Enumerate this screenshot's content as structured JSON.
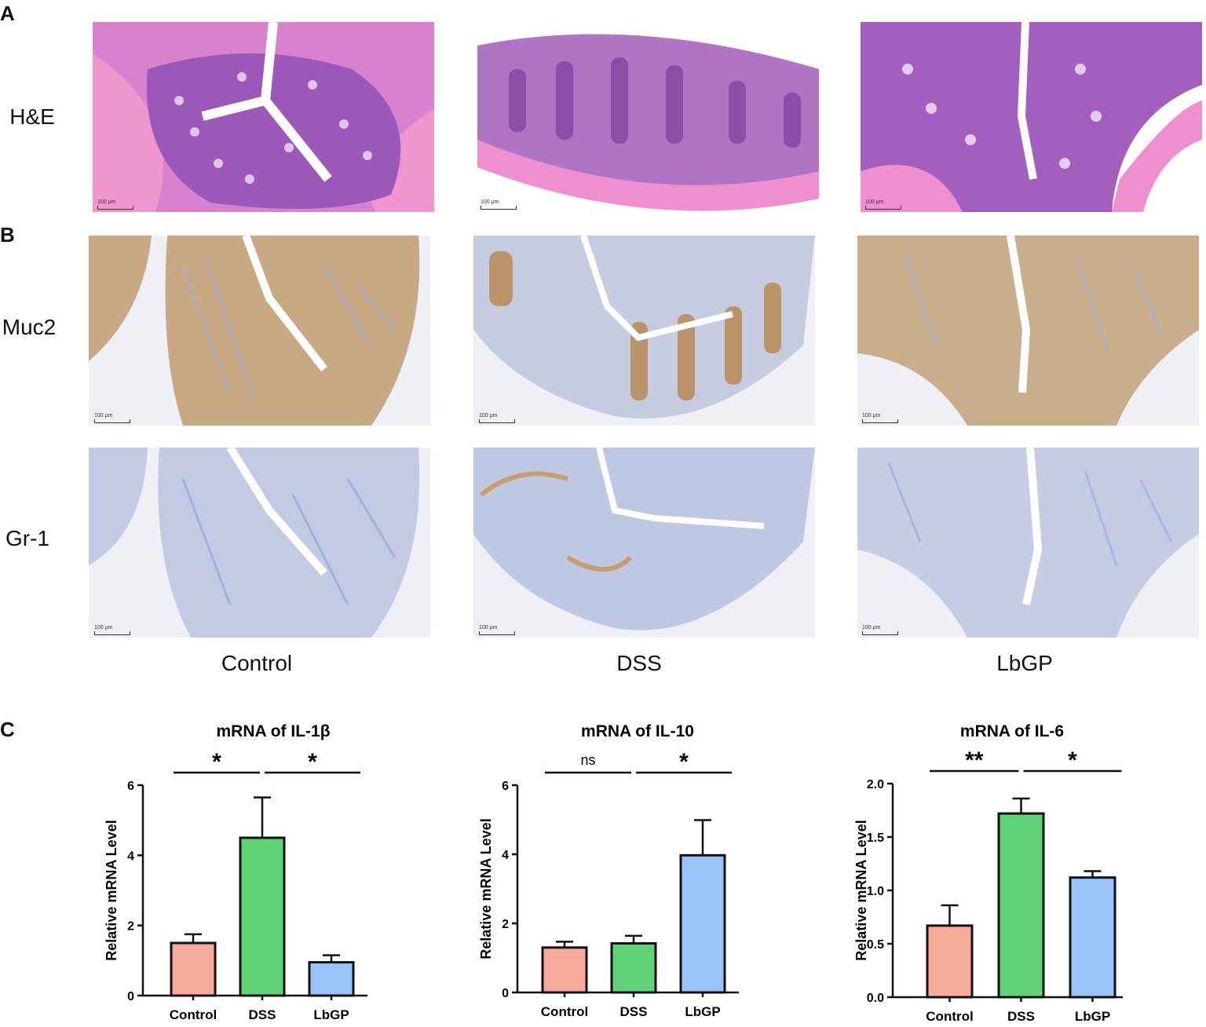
{
  "panels": {
    "a": "A",
    "b": "B",
    "c": "C"
  },
  "row_labels": [
    "H&E",
    "Muc2",
    "Gr-1"
  ],
  "column_labels": [
    "Control",
    "DSS",
    "LbGP"
  ],
  "scale_bar_text": "100 μm",
  "colors": {
    "he_bg": "#c970c9",
    "he_muscle": "#f08ccd",
    "he_crypt": "#7a3fa8",
    "ihc_bg": "#e6eaf3",
    "ihc_tissue": "#b9c3e0",
    "muc2_stain": "#b88a55",
    "control": "#f8aa9d",
    "dss": "#62d276",
    "lbgp": "#99c4fb"
  },
  "chart_data": [
    {
      "type": "bar",
      "title": "mRNA of IL-1β",
      "ylabel": "Relative mRNA Level",
      "categories": [
        "Control",
        "DSS",
        "LbGP"
      ],
      "values": [
        1.5,
        4.5,
        0.95
      ],
      "errors": [
        0.25,
        1.15,
        0.2
      ],
      "ylim": [
        0,
        6
      ],
      "yticks": [
        "0",
        "2",
        "4",
        "6"
      ],
      "ytick_values": [
        0,
        2,
        4,
        6
      ],
      "significance": [
        {
          "from": 0,
          "to": 1,
          "label": "*"
        },
        {
          "from": 1,
          "to": 2,
          "label": "*"
        }
      ]
    },
    {
      "type": "bar",
      "title": "mRNA of IL-10",
      "ylabel": "Relative mRNA Level",
      "categories": [
        "Control",
        "DSS",
        "LbGP"
      ],
      "values": [
        1.3,
        1.42,
        3.97
      ],
      "errors": [
        0.17,
        0.22,
        1.02
      ],
      "ylim": [
        0,
        6
      ],
      "yticks": [
        "0",
        "2",
        "4",
        "6"
      ],
      "ytick_values": [
        0,
        2,
        4,
        6
      ],
      "significance": [
        {
          "from": 0,
          "to": 1,
          "label": "ns"
        },
        {
          "from": 1,
          "to": 2,
          "label": "*"
        }
      ]
    },
    {
      "type": "bar",
      "title": "mRNA of IL-6",
      "ylabel": "Relative mRNA Level",
      "categories": [
        "Control",
        "DSS",
        "LbGP"
      ],
      "values": [
        0.67,
        1.72,
        1.12
      ],
      "errors": [
        0.19,
        0.14,
        0.06
      ],
      "ylim": [
        0,
        2
      ],
      "yticks": [
        "0.0",
        "0.5",
        "1.0",
        "1.5",
        "2.0"
      ],
      "ytick_values": [
        0,
        0.5,
        1,
        1.5,
        2
      ],
      "significance": [
        {
          "from": 0,
          "to": 1,
          "label": "**"
        },
        {
          "from": 1,
          "to": 2,
          "label": "*"
        }
      ]
    }
  ]
}
